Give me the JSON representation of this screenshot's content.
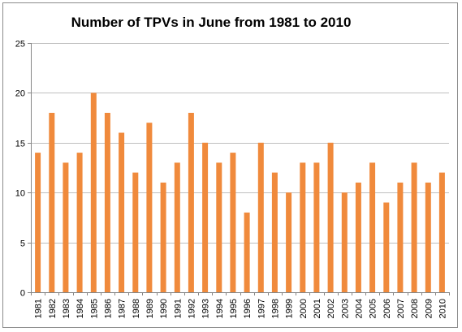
{
  "chart_data": {
    "type": "bar",
    "title": "Number of TPVs in June from 1981 to 2010",
    "xlabel": "",
    "ylabel": "",
    "ylim": [
      0,
      25
    ],
    "yticks": [
      0,
      5,
      10,
      15,
      20,
      25
    ],
    "grid": true,
    "legend": "none",
    "bar_color": "#f08a3c",
    "categories": [
      "1981",
      "1982",
      "1983",
      "1984",
      "1985",
      "1986",
      "1987",
      "1988",
      "1989",
      "1990",
      "1991",
      "1992",
      "1993",
      "1994",
      "1995",
      "1996",
      "1997",
      "1998",
      "1999",
      "2000",
      "2001",
      "2002",
      "2003",
      "2004",
      "2005",
      "2006",
      "2007",
      "2008",
      "2009",
      "2010"
    ],
    "values": [
      14,
      18,
      13,
      14,
      20,
      18,
      16,
      12,
      17,
      11,
      13,
      18,
      15,
      13,
      14,
      8,
      15,
      12,
      10,
      13,
      13,
      15,
      10,
      11,
      13,
      9,
      11,
      13,
      11,
      12
    ]
  }
}
